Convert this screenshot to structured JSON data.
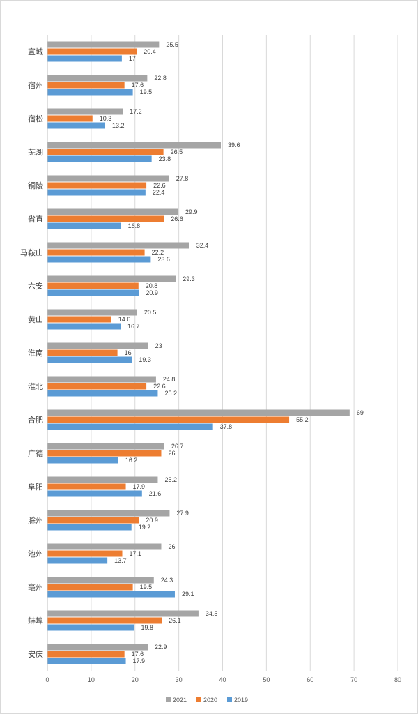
{
  "chart_data": {
    "type": "bar",
    "orientation": "horizontal",
    "categories": [
      "宣城",
      "宿州",
      "宿松",
      "芜湖",
      "铜陵",
      "省直",
      "马鞍山",
      "六安",
      "黄山",
      "淮南",
      "淮北",
      "合肥",
      "广德",
      "阜阳",
      "滁州",
      "池州",
      "亳州",
      "蚌埠",
      "安庆"
    ],
    "series": [
      {
        "name": "2021",
        "color": "#a5a5a5",
        "values": [
          25.5,
          22.8,
          17.2,
          39.6,
          27.8,
          29.9,
          32.4,
          29.3,
          20.5,
          23,
          24.8,
          69,
          26.7,
          25.2,
          27.9,
          26,
          24.3,
          34.5,
          22.9
        ]
      },
      {
        "name": "2020",
        "color": "#ed7d31",
        "values": [
          20.4,
          17.6,
          10.3,
          26.5,
          22.6,
          26.6,
          22.2,
          20.8,
          14.6,
          16,
          22.6,
          55.2,
          26,
          17.9,
          20.9,
          17.1,
          19.5,
          26.1,
          17.6
        ]
      },
      {
        "name": "2019",
        "color": "#5b9bd5",
        "values": [
          17,
          19.5,
          13.2,
          23.8,
          22.4,
          16.8,
          23.6,
          20.9,
          16.7,
          19.3,
          25.2,
          37.8,
          16.2,
          21.6,
          19.2,
          13.7,
          29.1,
          19.8,
          17.9
        ]
      }
    ],
    "xlim": [
      0,
      80
    ],
    "xticks": [
      0,
      10,
      20,
      30,
      40,
      50,
      60,
      70,
      80
    ],
    "title": "",
    "xlabel": "",
    "ylabel": "",
    "grid": true,
    "legend": "bottom",
    "legend_order": [
      "2021",
      "2020",
      "2019"
    ],
    "data_labels": true
  }
}
